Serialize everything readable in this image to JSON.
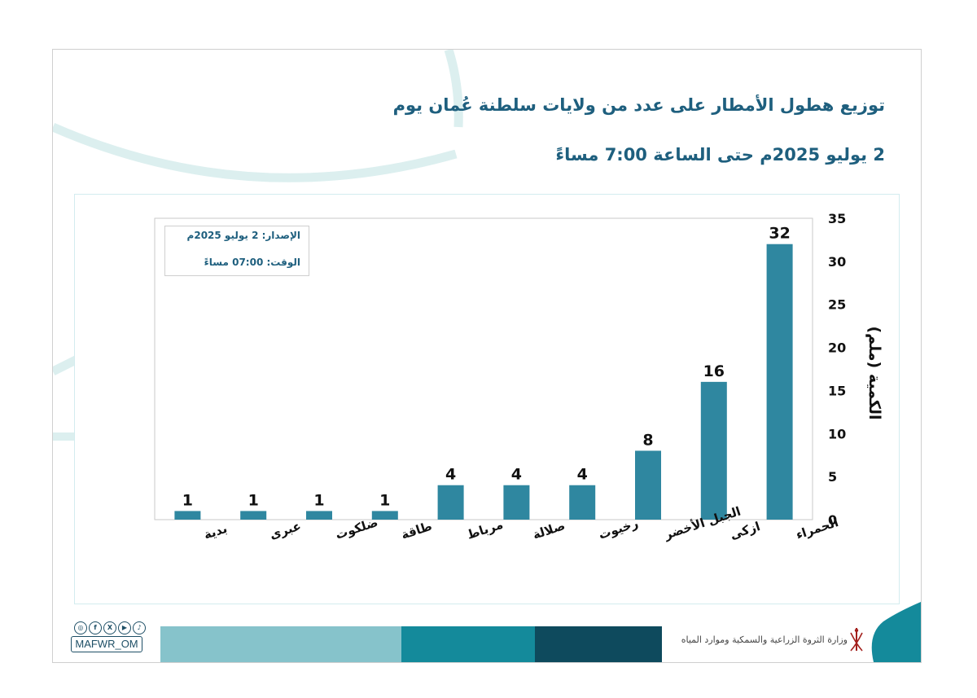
{
  "header": {
    "title_line1": "توزيع هطول الأمطار على عدد من ولايات سلطنة عُمان يوم",
    "title_line2": "2 يوليو 2025م حتى الساعة 7:00 مساءً"
  },
  "issue_box": {
    "issue": "الإصدار: 2 يوليو 2025م",
    "time": "الوقت:  07:00 مساءً"
  },
  "chart_data": {
    "type": "bar",
    "categories": [
      "الحمراء",
      "ازكى",
      "الجبل الأخضر",
      "رخيوت",
      "صلالة",
      "مرباط",
      "طاقة",
      "ضلكوت",
      "عبرى",
      "بدية"
    ],
    "values": [
      32,
      16,
      8,
      4,
      4,
      4,
      1,
      1,
      1,
      1
    ],
    "ylabel": "الكمية (ملم)",
    "ylim": [
      0,
      35
    ],
    "yticks": [
      0,
      5,
      10,
      15,
      20,
      25,
      30,
      35
    ],
    "y_axis_side": "right",
    "category_order": "right-to-left",
    "grid": false,
    "legend": "none",
    "bar_color": "#2f87a0"
  },
  "footer": {
    "social_handle": "MAFWR_OM",
    "social_icons": [
      "instagram-icon",
      "facebook-icon",
      "x-icon",
      "youtube-icon",
      "tiktok-icon"
    ],
    "ministry_name": "وزارة الثروة الزراعية والسمكية وموارد المياه"
  },
  "colors": {
    "title": "#1e5f7e",
    "bar": "#2f87a0",
    "band_light": "#86c3cb",
    "band_mid": "#148a9b",
    "band_dark": "#0e4a5d"
  }
}
